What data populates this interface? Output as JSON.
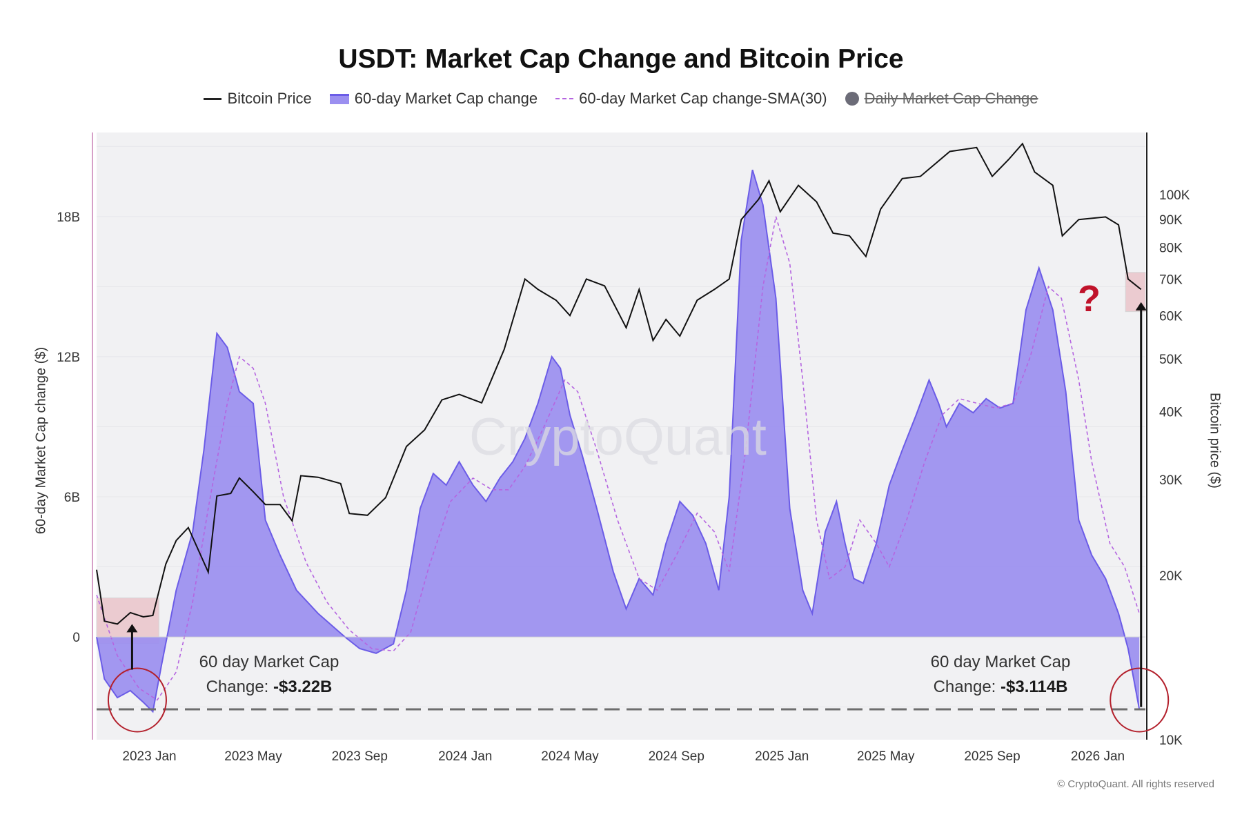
{
  "chart_data": {
    "type": "area",
    "title": "USDT: Market Cap Change and Bitcoin Price",
    "ylabel": "60-day Market Cap change ($)",
    "y2label": "Bitcoin price ($)",
    "legend": [
      {
        "name": "Bitcoin Price",
        "style": "line"
      },
      {
        "name": "60-day Market Cap change",
        "style": "area"
      },
      {
        "name": "60-day Market Cap change-SMA(30)",
        "style": "dashed"
      },
      {
        "name": "Daily Market Cap Change",
        "style": "dot-disabled"
      }
    ],
    "x_ticks": [
      "2023 Jan",
      "2023 May",
      "2023 Sep",
      "2024 Jan",
      "2024 May",
      "2024 Sep",
      "2025 Jan",
      "2025 May",
      "2025 Sep",
      "2026 Jan"
    ],
    "y_ticks": [
      "0",
      "6B",
      "12B",
      "18B"
    ],
    "y2_ticks": [
      "10K",
      "20K",
      "30K",
      "40K",
      "50K",
      "60K",
      "70K",
      "80K",
      "90K",
      "100K"
    ],
    "ylim": [
      -4.4,
      21.6
    ],
    "y2lim": [
      10000,
      130000
    ],
    "y2scale": "log",
    "xlim": [
      "2022-11-01",
      "2026-02-25"
    ],
    "series": [
      {
        "name": "60-day Market Cap change",
        "unit": "B USD",
        "points": [
          [
            "2022-11-01",
            0.0
          ],
          [
            "2022-11-10",
            -1.8
          ],
          [
            "2022-11-25",
            -2.6
          ],
          [
            "2022-12-10",
            -2.3
          ],
          [
            "2022-12-25",
            -2.8
          ],
          [
            "2023-01-05",
            -3.2
          ],
          [
            "2023-01-15",
            -1.2
          ],
          [
            "2023-02-01",
            2.0
          ],
          [
            "2023-02-20",
            4.5
          ],
          [
            "2023-03-05",
            8.0
          ],
          [
            "2023-03-20",
            13.0
          ],
          [
            "2023-04-01",
            12.4
          ],
          [
            "2023-04-15",
            10.5
          ],
          [
            "2023-05-01",
            10.0
          ],
          [
            "2023-05-15",
            5.0
          ],
          [
            "2023-06-01",
            3.5
          ],
          [
            "2023-06-20",
            2.0
          ],
          [
            "2023-07-15",
            1.0
          ],
          [
            "2023-08-15",
            0.0
          ],
          [
            "2023-09-01",
            -0.5
          ],
          [
            "2023-09-20",
            -0.7
          ],
          [
            "2023-10-10",
            -0.3
          ],
          [
            "2023-10-25",
            2.0
          ],
          [
            "2023-11-10",
            5.5
          ],
          [
            "2023-11-25",
            7.0
          ],
          [
            "2023-12-10",
            6.5
          ],
          [
            "2023-12-25",
            7.5
          ],
          [
            "2024-01-10",
            6.5
          ],
          [
            "2024-01-25",
            5.8
          ],
          [
            "2024-02-10",
            6.8
          ],
          [
            "2024-02-25",
            7.5
          ],
          [
            "2024-03-10",
            8.5
          ],
          [
            "2024-03-25",
            10.0
          ],
          [
            "2024-04-10",
            12.0
          ],
          [
            "2024-04-20",
            11.5
          ],
          [
            "2024-05-01",
            9.5
          ],
          [
            "2024-05-15",
            7.8
          ],
          [
            "2024-06-01",
            5.5
          ],
          [
            "2024-06-20",
            2.8
          ],
          [
            "2024-07-05",
            1.2
          ],
          [
            "2024-07-20",
            2.5
          ],
          [
            "2024-08-05",
            1.8
          ],
          [
            "2024-08-20",
            4.0
          ],
          [
            "2024-09-05",
            5.8
          ],
          [
            "2024-09-20",
            5.2
          ],
          [
            "2024-10-05",
            4.0
          ],
          [
            "2024-10-20",
            2.0
          ],
          [
            "2024-11-01",
            6.0
          ],
          [
            "2024-11-15",
            17.0
          ],
          [
            "2024-11-28",
            20.0
          ],
          [
            "2024-12-10",
            18.5
          ],
          [
            "2024-12-25",
            14.5
          ],
          [
            "2025-01-10",
            5.5
          ],
          [
            "2025-01-25",
            2.0
          ],
          [
            "2025-02-05",
            1.0
          ],
          [
            "2025-02-20",
            4.5
          ],
          [
            "2025-03-05",
            5.8
          ],
          [
            "2025-03-15",
            4.0
          ],
          [
            "2025-03-25",
            2.5
          ],
          [
            "2025-04-05",
            2.3
          ],
          [
            "2025-04-20",
            4.0
          ],
          [
            "2025-05-05",
            6.5
          ],
          [
            "2025-05-20",
            8.0
          ],
          [
            "2025-06-05",
            9.5
          ],
          [
            "2025-06-20",
            11.0
          ],
          [
            "2025-07-01",
            10.0
          ],
          [
            "2025-07-10",
            9.0
          ],
          [
            "2025-07-25",
            10.0
          ],
          [
            "2025-08-10",
            9.6
          ],
          [
            "2025-08-25",
            10.2
          ],
          [
            "2025-09-10",
            9.8
          ],
          [
            "2025-09-25",
            10.0
          ],
          [
            "2025-10-10",
            14.0
          ],
          [
            "2025-10-25",
            15.8
          ],
          [
            "2025-11-10",
            14.0
          ],
          [
            "2025-11-25",
            10.5
          ],
          [
            "2025-12-10",
            5.0
          ],
          [
            "2025-12-25",
            3.5
          ],
          [
            "2026-01-10",
            2.5
          ],
          [
            "2026-01-25",
            1.0
          ],
          [
            "2026-02-05",
            -0.5
          ],
          [
            "2026-02-18",
            -3.1
          ]
        ]
      },
      {
        "name": "60-day Market Cap change-SMA(30)",
        "unit": "B USD",
        "points": [
          [
            "2022-11-01",
            1.8
          ],
          [
            "2022-11-25",
            -0.8
          ],
          [
            "2022-12-20",
            -2.2
          ],
          [
            "2023-01-10",
            -2.7
          ],
          [
            "2023-02-01",
            -1.5
          ],
          [
            "2023-02-20",
            1.5
          ],
          [
            "2023-03-10",
            5.5
          ],
          [
            "2023-04-01",
            10.0
          ],
          [
            "2023-04-15",
            12.0
          ],
          [
            "2023-05-01",
            11.5
          ],
          [
            "2023-05-15",
            10.0
          ],
          [
            "2023-06-05",
            6.0
          ],
          [
            "2023-07-01",
            3.2
          ],
          [
            "2023-07-25",
            1.5
          ],
          [
            "2023-08-20",
            0.3
          ],
          [
            "2023-09-15",
            -0.5
          ],
          [
            "2023-10-10",
            -0.6
          ],
          [
            "2023-10-30",
            0.2
          ],
          [
            "2023-11-20",
            3.0
          ],
          [
            "2023-12-15",
            5.8
          ],
          [
            "2024-01-10",
            6.8
          ],
          [
            "2024-02-01",
            6.3
          ],
          [
            "2024-02-20",
            6.3
          ],
          [
            "2024-03-10",
            7.3
          ],
          [
            "2024-04-01",
            9.0
          ],
          [
            "2024-04-25",
            11.0
          ],
          [
            "2024-05-10",
            10.5
          ],
          [
            "2024-06-01",
            8.0
          ],
          [
            "2024-06-25",
            5.0
          ],
          [
            "2024-07-20",
            2.5
          ],
          [
            "2024-08-10",
            2.0
          ],
          [
            "2024-09-01",
            3.5
          ],
          [
            "2024-09-25",
            5.3
          ],
          [
            "2024-10-15",
            4.5
          ],
          [
            "2024-11-01",
            2.8
          ],
          [
            "2024-11-20",
            8.0
          ],
          [
            "2024-12-10",
            15.0
          ],
          [
            "2024-12-25",
            18.0
          ],
          [
            "2025-01-10",
            16.0
          ],
          [
            "2025-01-25",
            11.0
          ],
          [
            "2025-02-10",
            5.0
          ],
          [
            "2025-02-25",
            2.5
          ],
          [
            "2025-03-15",
            3.0
          ],
          [
            "2025-04-01",
            5.0
          ],
          [
            "2025-04-20",
            4.0
          ],
          [
            "2025-05-05",
            3.0
          ],
          [
            "2025-05-25",
            5.0
          ],
          [
            "2025-06-15",
            7.5
          ],
          [
            "2025-07-05",
            9.5
          ],
          [
            "2025-07-25",
            10.2
          ],
          [
            "2025-08-15",
            10.0
          ],
          [
            "2025-09-05",
            9.8
          ],
          [
            "2025-09-25",
            10.0
          ],
          [
            "2025-10-15",
            12.0
          ],
          [
            "2025-11-05",
            15.0
          ],
          [
            "2025-11-20",
            14.5
          ],
          [
            "2025-12-10",
            11.0
          ],
          [
            "2025-12-25",
            7.5
          ],
          [
            "2026-01-15",
            4.0
          ],
          [
            "2026-02-01",
            3.0
          ],
          [
            "2026-02-18",
            1.0
          ]
        ]
      },
      {
        "name": "Bitcoin Price",
        "unit": "USD",
        "axis": "right",
        "points": [
          [
            "2022-11-01",
            20500
          ],
          [
            "2022-11-10",
            16500
          ],
          [
            "2022-11-25",
            16300
          ],
          [
            "2022-12-10",
            17100
          ],
          [
            "2022-12-25",
            16800
          ],
          [
            "2023-01-05",
            16900
          ],
          [
            "2023-01-20",
            21000
          ],
          [
            "2023-02-01",
            23200
          ],
          [
            "2023-02-15",
            24500
          ],
          [
            "2023-03-10",
            20300
          ],
          [
            "2023-03-20",
            28000
          ],
          [
            "2023-04-05",
            28300
          ],
          [
            "2023-04-15",
            30200
          ],
          [
            "2023-05-01",
            28500
          ],
          [
            "2023-05-15",
            27000
          ],
          [
            "2023-06-01",
            27000
          ],
          [
            "2023-06-15",
            25200
          ],
          [
            "2023-06-25",
            30500
          ],
          [
            "2023-07-15",
            30300
          ],
          [
            "2023-08-10",
            29500
          ],
          [
            "2023-08-20",
            26000
          ],
          [
            "2023-09-10",
            25800
          ],
          [
            "2023-10-01",
            27800
          ],
          [
            "2023-10-25",
            34500
          ],
          [
            "2023-11-15",
            37000
          ],
          [
            "2023-12-05",
            42000
          ],
          [
            "2023-12-25",
            43000
          ],
          [
            "2024-01-20",
            41500
          ],
          [
            "2024-02-15",
            52000
          ],
          [
            "2024-03-10",
            70000
          ],
          [
            "2024-03-25",
            67000
          ],
          [
            "2024-04-15",
            64000
          ],
          [
            "2024-05-01",
            60000
          ],
          [
            "2024-05-20",
            70000
          ],
          [
            "2024-06-10",
            68000
          ],
          [
            "2024-07-05",
            57000
          ],
          [
            "2024-07-20",
            67000
          ],
          [
            "2024-08-05",
            54000
          ],
          [
            "2024-08-20",
            59000
          ],
          [
            "2024-09-05",
            55000
          ],
          [
            "2024-09-25",
            64000
          ],
          [
            "2024-10-15",
            67000
          ],
          [
            "2024-11-01",
            70000
          ],
          [
            "2024-11-15",
            90000
          ],
          [
            "2024-12-05",
            98000
          ],
          [
            "2024-12-17",
            106000
          ],
          [
            "2024-12-30",
            93000
          ],
          [
            "2025-01-20",
            104000
          ],
          [
            "2025-02-10",
            97000
          ],
          [
            "2025-03-01",
            85000
          ],
          [
            "2025-03-20",
            84000
          ],
          [
            "2025-04-08",
            77000
          ],
          [
            "2025-04-25",
            94000
          ],
          [
            "2025-05-20",
            107000
          ],
          [
            "2025-06-10",
            108000
          ],
          [
            "2025-07-14",
            120000
          ],
          [
            "2025-08-14",
            122000
          ],
          [
            "2025-09-01",
            108000
          ],
          [
            "2025-09-20",
            116000
          ],
          [
            "2025-10-06",
            124000
          ],
          [
            "2025-10-20",
            110000
          ],
          [
            "2025-11-10",
            104000
          ],
          [
            "2025-11-21",
            84000
          ],
          [
            "2025-12-10",
            90000
          ],
          [
            "2026-01-10",
            91000
          ],
          [
            "2026-01-25",
            88000
          ],
          [
            "2026-02-05",
            70000
          ],
          [
            "2026-02-20",
            67000
          ]
        ]
      }
    ],
    "baseline_dashed": -3.1
  },
  "annotations": {
    "left_line1": "60 day Market Cap",
    "left_line2_prefix": "Change: ",
    "left_value": "-$3.22B",
    "right_line1": "60 day Market Cap",
    "right_line2_prefix": "Change: ",
    "right_value": "-$3.114B",
    "question_mark": "?"
  },
  "watermark": "CryptoQuant",
  "copyright": "© CryptoQuant. All rights reserved",
  "colors": {
    "area_fill": "#9b8ff0",
    "area_stroke": "#6b5ce7",
    "sma": "#b565e0",
    "price": "#111111",
    "plot_bg": "#f1f1f3",
    "highlight_box": "#e8b7be",
    "circle": "#b3202c"
  }
}
